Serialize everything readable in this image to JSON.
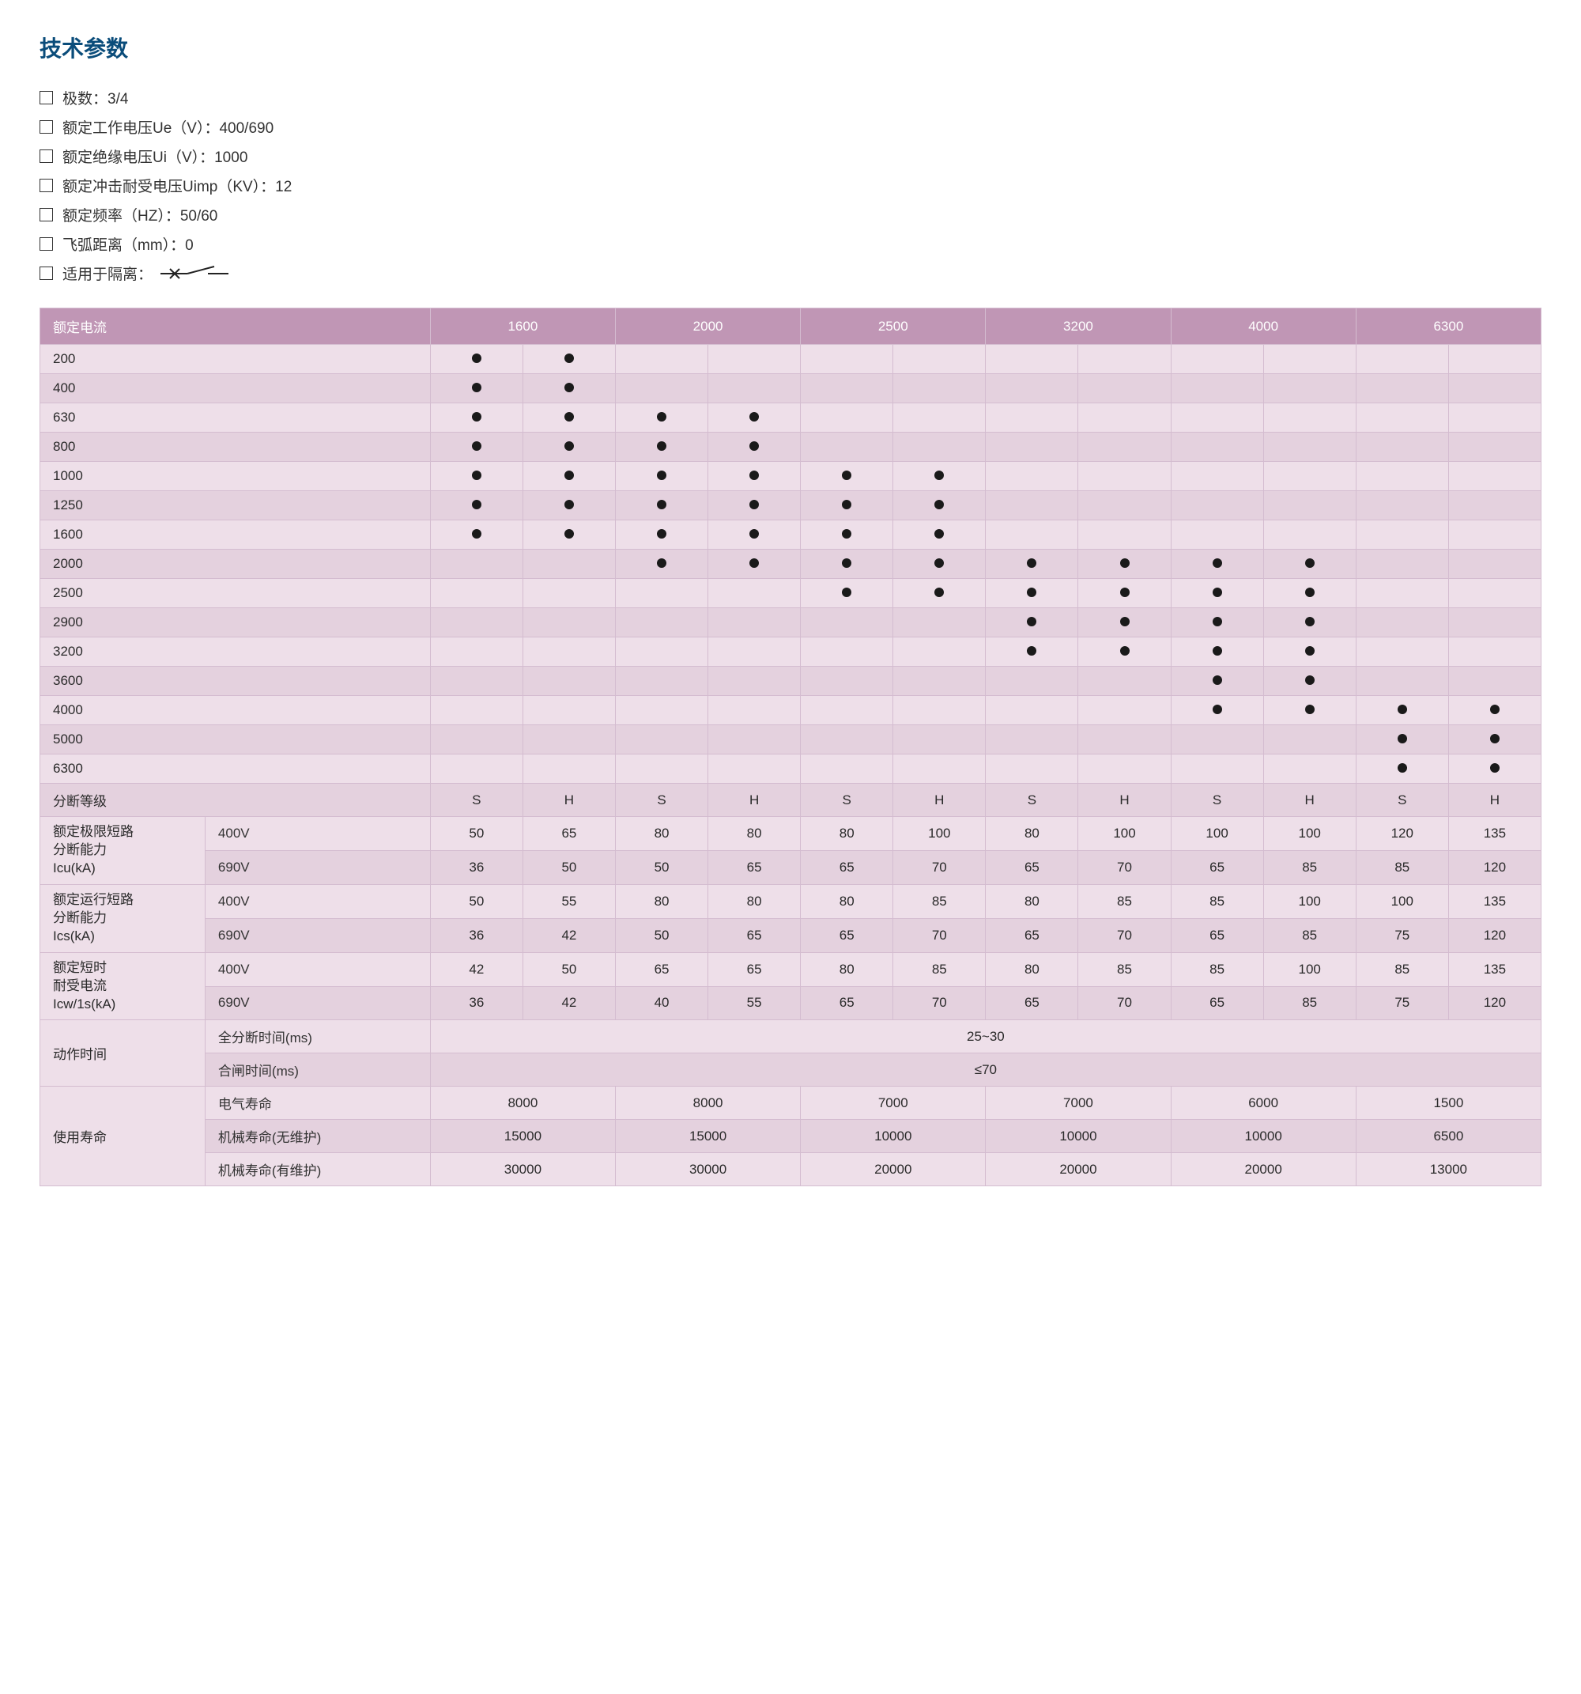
{
  "title": "技术参数",
  "specs": [
    "极数：3/4",
    "额定工作电压Ue（V）：400/690",
    "额定绝缘电压Ui（V）：1000",
    "额定冲击耐受电压Uimp（KV）：12",
    "额定频率（HZ）：50/60",
    "飞弧距离（mm）：0"
  ],
  "spec_isolation": "适用于隔离：",
  "table": {
    "header_label": "额定电流",
    "columns": [
      "1600",
      "2000",
      "2500",
      "3200",
      "4000",
      "6300"
    ],
    "dot_rows": [
      {
        "label": "200",
        "dots": [
          1,
          1,
          0,
          0,
          0,
          0,
          0,
          0,
          0,
          0,
          0,
          0
        ]
      },
      {
        "label": "400",
        "dots": [
          1,
          1,
          0,
          0,
          0,
          0,
          0,
          0,
          0,
          0,
          0,
          0
        ]
      },
      {
        "label": "630",
        "dots": [
          1,
          1,
          1,
          1,
          0,
          0,
          0,
          0,
          0,
          0,
          0,
          0
        ]
      },
      {
        "label": "800",
        "dots": [
          1,
          1,
          1,
          1,
          0,
          0,
          0,
          0,
          0,
          0,
          0,
          0
        ]
      },
      {
        "label": "1000",
        "dots": [
          1,
          1,
          1,
          1,
          1,
          1,
          0,
          0,
          0,
          0,
          0,
          0
        ]
      },
      {
        "label": "1250",
        "dots": [
          1,
          1,
          1,
          1,
          1,
          1,
          0,
          0,
          0,
          0,
          0,
          0
        ]
      },
      {
        "label": "1600",
        "dots": [
          1,
          1,
          1,
          1,
          1,
          1,
          0,
          0,
          0,
          0,
          0,
          0
        ]
      },
      {
        "label": "2000",
        "dots": [
          0,
          0,
          1,
          1,
          1,
          1,
          1,
          1,
          1,
          1,
          0,
          0
        ]
      },
      {
        "label": "2500",
        "dots": [
          0,
          0,
          0,
          0,
          1,
          1,
          1,
          1,
          1,
          1,
          0,
          0
        ]
      },
      {
        "label": "2900",
        "dots": [
          0,
          0,
          0,
          0,
          0,
          0,
          1,
          1,
          1,
          1,
          0,
          0
        ]
      },
      {
        "label": "3200",
        "dots": [
          0,
          0,
          0,
          0,
          0,
          0,
          1,
          1,
          1,
          1,
          0,
          0
        ]
      },
      {
        "label": "3600",
        "dots": [
          0,
          0,
          0,
          0,
          0,
          0,
          0,
          0,
          1,
          1,
          0,
          0
        ]
      },
      {
        "label": "4000",
        "dots": [
          0,
          0,
          0,
          0,
          0,
          0,
          0,
          0,
          1,
          1,
          1,
          1
        ]
      },
      {
        "label": "5000",
        "dots": [
          0,
          0,
          0,
          0,
          0,
          0,
          0,
          0,
          0,
          0,
          1,
          1
        ]
      },
      {
        "label": "6300",
        "dots": [
          0,
          0,
          0,
          0,
          0,
          0,
          0,
          0,
          0,
          0,
          1,
          1
        ]
      }
    ],
    "break_level_label": "分断等级",
    "sh_labels": [
      "S",
      "H",
      "S",
      "H",
      "S",
      "H",
      "S",
      "H",
      "S",
      "H",
      "S",
      "H"
    ],
    "param_groups": [
      {
        "group": "额定极限短路\n分断能力\nIcu(kA)",
        "rows": [
          {
            "sub": "400V",
            "vals": [
              "50",
              "65",
              "80",
              "80",
              "80",
              "100",
              "80",
              "100",
              "100",
              "100",
              "120",
              "135"
            ]
          },
          {
            "sub": "690V",
            "vals": [
              "36",
              "50",
              "50",
              "65",
              "65",
              "70",
              "65",
              "70",
              "65",
              "85",
              "85",
              "120"
            ]
          }
        ]
      },
      {
        "group": "额定运行短路\n分断能力\nIcs(kA)",
        "rows": [
          {
            "sub": "400V",
            "vals": [
              "50",
              "55",
              "80",
              "80",
              "80",
              "85",
              "80",
              "85",
              "85",
              "100",
              "100",
              "135"
            ]
          },
          {
            "sub": "690V",
            "vals": [
              "36",
              "42",
              "50",
              "65",
              "65",
              "70",
              "65",
              "70",
              "65",
              "85",
              "75",
              "120"
            ]
          }
        ]
      },
      {
        "group": "额定短时\n耐受电流\nIcw/1s(kA)",
        "rows": [
          {
            "sub": "400V",
            "vals": [
              "42",
              "50",
              "65",
              "65",
              "80",
              "85",
              "80",
              "85",
              "85",
              "100",
              "85",
              "135"
            ]
          },
          {
            "sub": "690V",
            "vals": [
              "36",
              "42",
              "40",
              "55",
              "65",
              "70",
              "65",
              "70",
              "65",
              "85",
              "75",
              "120"
            ]
          }
        ]
      }
    ],
    "action_time": {
      "group": "动作时间",
      "rows": [
        {
          "sub": "全分断时间(ms)",
          "val": "25~30"
        },
        {
          "sub": "合闸时间(ms)",
          "val": "≤70"
        }
      ]
    },
    "life": {
      "group": "使用寿命",
      "rows": [
        {
          "sub": "电气寿命",
          "vals": [
            "8000",
            "8000",
            "7000",
            "7000",
            "6000",
            "1500"
          ]
        },
        {
          "sub": "机械寿命(无维护)",
          "vals": [
            "15000",
            "15000",
            "10000",
            "10000",
            "10000",
            "6500"
          ]
        },
        {
          "sub": "机械寿命(有维护)",
          "vals": [
            "30000",
            "30000",
            "20000",
            "20000",
            "20000",
            "13000"
          ]
        }
      ]
    }
  },
  "colors": {
    "header_bg": "#c096b5",
    "row_alt1": "#eedfe9",
    "row_alt2": "#e4d1de",
    "border": "#d4bcd0",
    "title": "#0a4c7a",
    "dot": "#1a1a1a"
  }
}
